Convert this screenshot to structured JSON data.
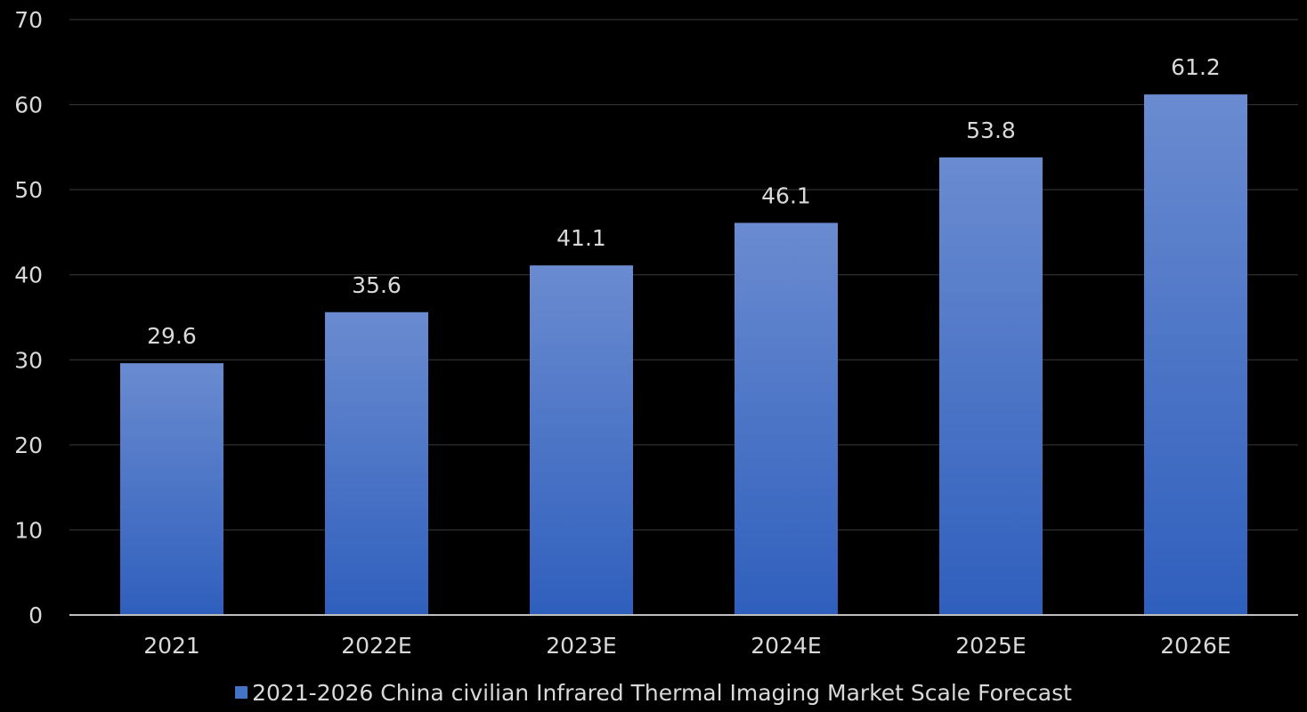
{
  "chart_data": {
    "type": "bar",
    "categories": [
      "2021",
      "2022E",
      "2023E",
      "2024E",
      "2025E",
      "2026E"
    ],
    "series": [
      {
        "name": "2021-2026 China civilian Infrared Thermal Imaging Market Scale Forecast",
        "values": [
          29.6,
          35.6,
          41.1,
          46.1,
          53.8,
          61.2
        ],
        "data_labels": [
          "29.6",
          "35.6",
          "41.1",
          "46.1",
          "53.8",
          "61.2"
        ]
      }
    ],
    "y_ticks": [
      "0",
      "10",
      "20",
      "30",
      "40",
      "50",
      "60",
      "70"
    ],
    "ylim": [
      0,
      70
    ],
    "grid": true,
    "legend_position": "bottom",
    "colors": {
      "background": "#000000",
      "bar_top": "#6a8bd0",
      "bar_bottom": "#2f5fbd",
      "legend_swatch": "#4472c4",
      "text": "#d9d9d9",
      "grid": "#3a3a3a",
      "axis": "#bfbfbf"
    }
  }
}
